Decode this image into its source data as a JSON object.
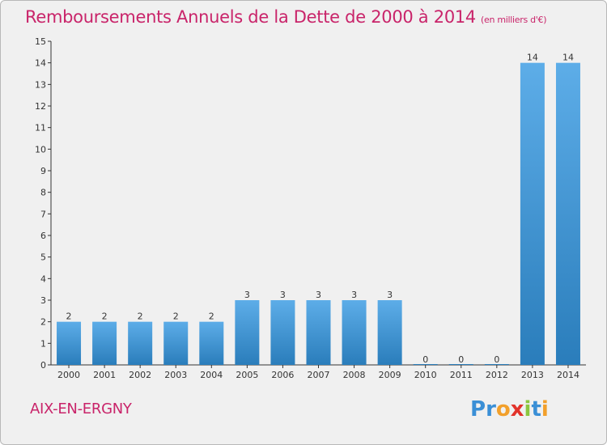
{
  "title": "Remboursements Annuels de la Dette de 2000 à 2014",
  "unit": "(en milliers d'€)",
  "commune": "AIX-EN-ERGNY",
  "logo": {
    "text": "Proxiti",
    "letters": [
      {
        "ch": "P",
        "color": "#3a8fd6"
      },
      {
        "ch": "r",
        "color": "#3a8fd6"
      },
      {
        "ch": "o",
        "color": "#f2a02b"
      },
      {
        "ch": "x",
        "color": "#e2332b"
      },
      {
        "ch": "i",
        "color": "#8cc63f"
      },
      {
        "ch": "t",
        "color": "#3a8fd6"
      },
      {
        "ch": "i",
        "color": "#f2a02b"
      }
    ]
  },
  "colors": {
    "title": "#c9246a",
    "bar_top": "#5dade8",
    "bar_bottom": "#2a7dbb",
    "background": "#f0f0f0"
  },
  "chart_data": {
    "type": "bar",
    "categories": [
      "2000",
      "2001",
      "2002",
      "2003",
      "2004",
      "2005",
      "2006",
      "2007",
      "2008",
      "2009",
      "2010",
      "2011",
      "2012",
      "2013",
      "2014"
    ],
    "values": [
      2,
      2,
      2,
      2,
      2,
      3,
      3,
      3,
      3,
      3,
      0,
      0,
      0,
      14,
      14
    ],
    "y_ticks": [
      0,
      1,
      2,
      3,
      4,
      5,
      6,
      7,
      8,
      9,
      10,
      11,
      12,
      13,
      14,
      15
    ],
    "ylim": [
      0,
      15
    ],
    "grid": false,
    "legend": "none"
  }
}
